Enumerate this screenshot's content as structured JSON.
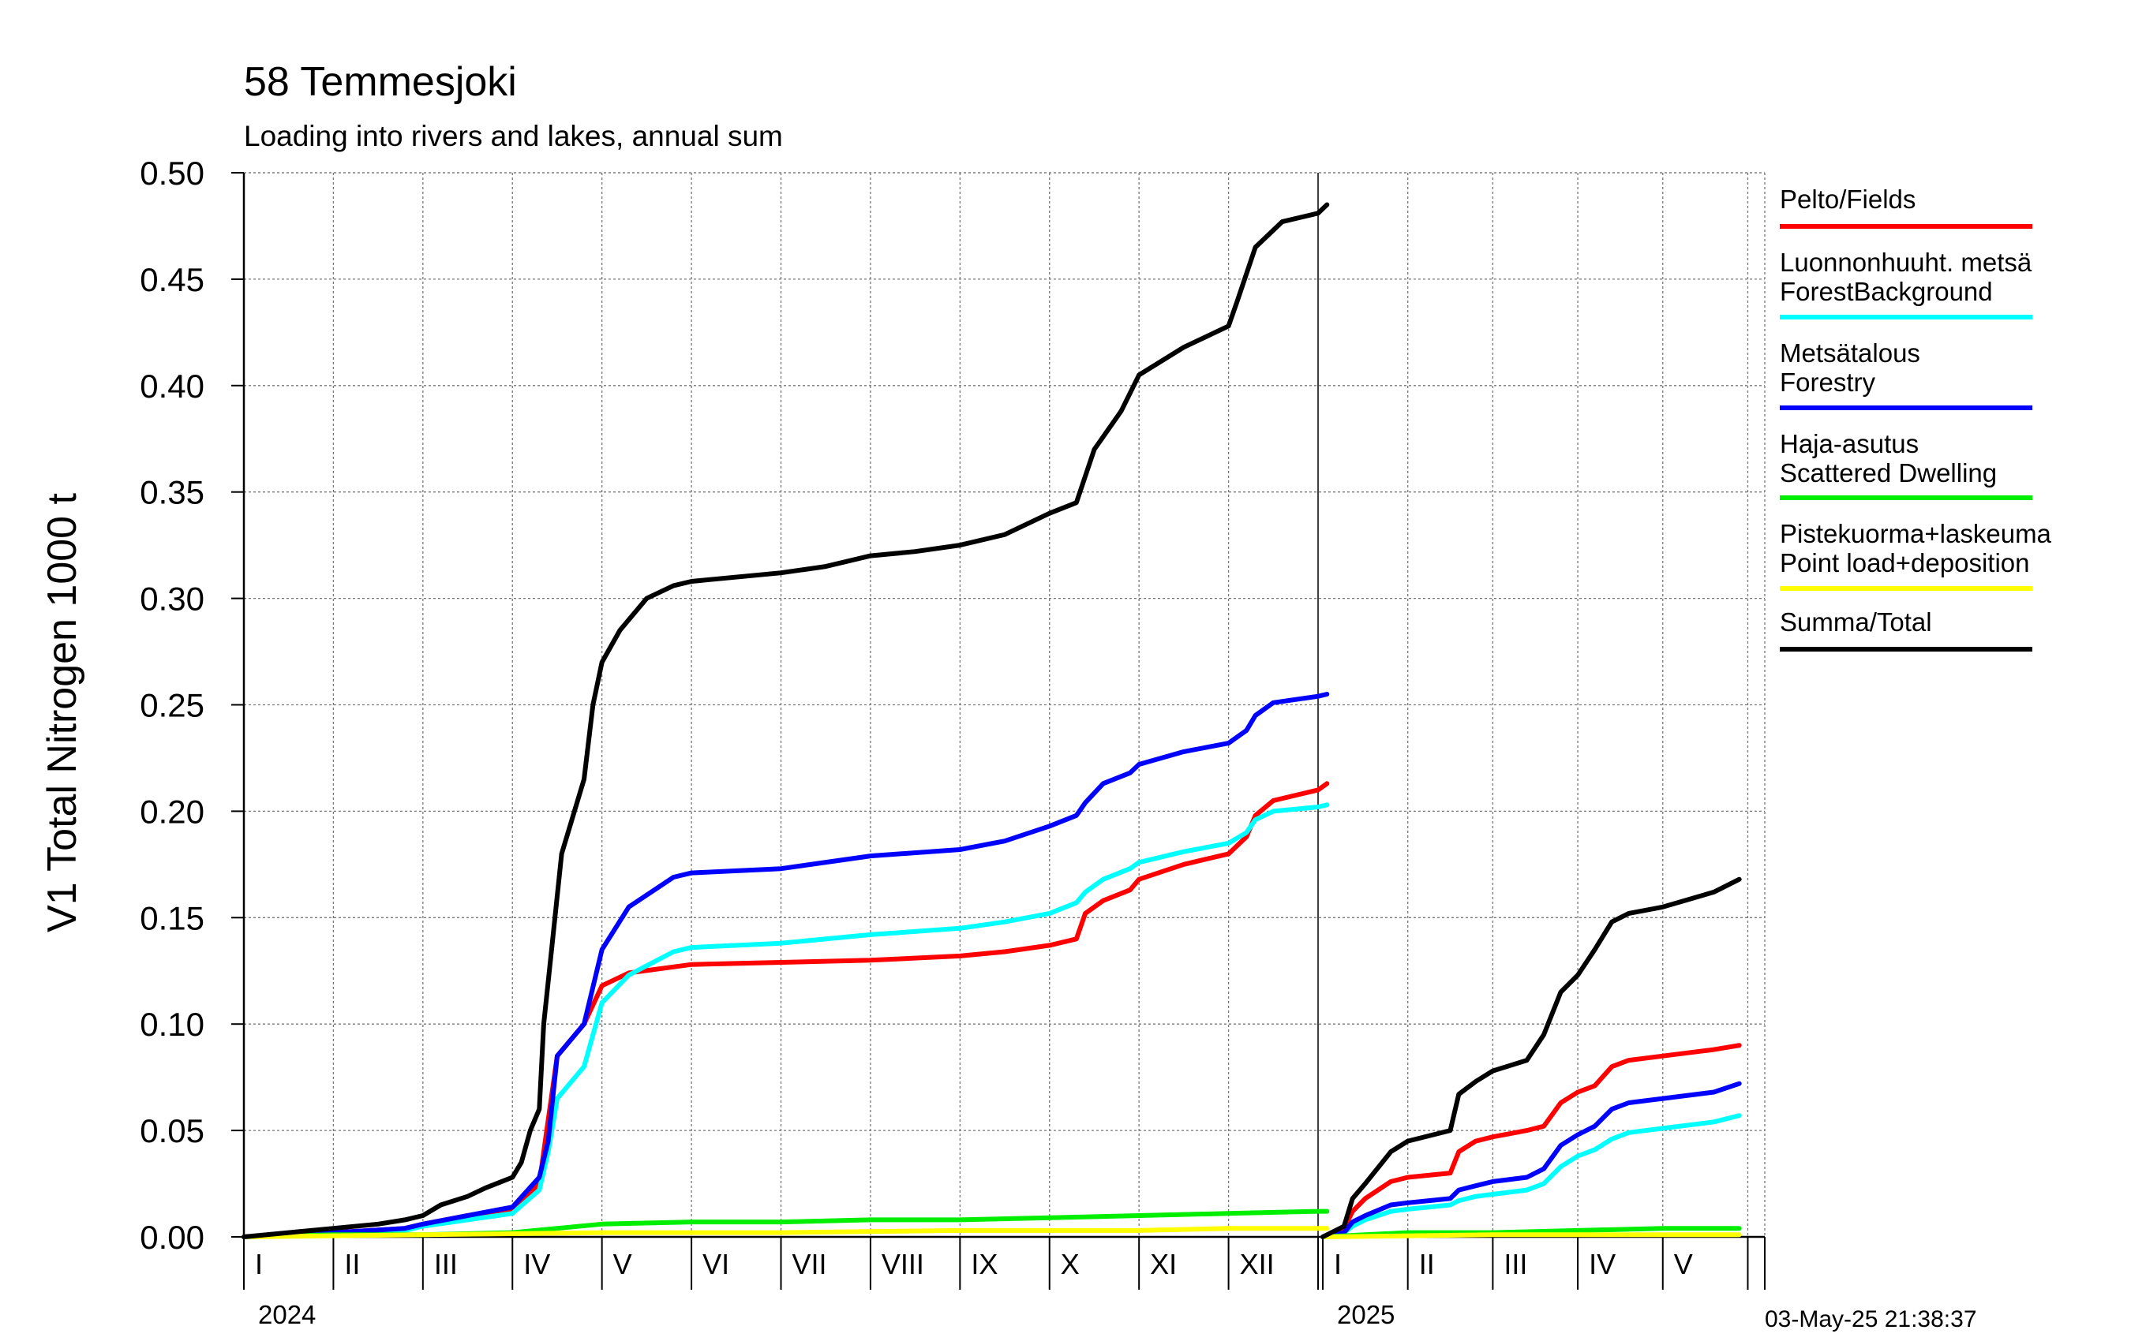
{
  "title": "58 Temmesjoki",
  "subtitle": "Loading into rivers and lakes, annual sum",
  "timestamp": "03-May-25 21:38:37",
  "chart_data": {
    "type": "line",
    "ylabel": "V1 Total Nitrogen 1000 t",
    "ylim": [
      0,
      0.5
    ],
    "y_ticks": [
      "0.00",
      "0.05",
      "0.10",
      "0.15",
      "0.20",
      "0.25",
      "0.30",
      "0.35",
      "0.40",
      "0.45",
      "0.50"
    ],
    "x_unit": "month",
    "panels": [
      {
        "year": "2024",
        "months": [
          "I",
          "II",
          "III",
          "IV",
          "V",
          "VI",
          "VII",
          "VIII",
          "IX",
          "X",
          "XI",
          "XII"
        ]
      },
      {
        "year": "2025",
        "months": [
          "I",
          "II",
          "III",
          "IV",
          "V"
        ]
      }
    ],
    "grid": true,
    "legend_position": "right",
    "series": [
      {
        "name": "Pelto/Fields",
        "color": "#ff0000",
        "panel_2024": [
          [
            0,
            0
          ],
          [
            1,
            0.002
          ],
          [
            1.8,
            0.004
          ],
          [
            2,
            0.006
          ],
          [
            2.5,
            0.01
          ],
          [
            3,
            0.013
          ],
          [
            3.3,
            0.025
          ],
          [
            3.4,
            0.055
          ],
          [
            3.5,
            0.085
          ],
          [
            3.8,
            0.1
          ],
          [
            4,
            0.118
          ],
          [
            4.3,
            0.124
          ],
          [
            5,
            0.128
          ],
          [
            6,
            0.129
          ],
          [
            7,
            0.13
          ],
          [
            8,
            0.132
          ],
          [
            8.5,
            0.134
          ],
          [
            9,
            0.137
          ],
          [
            9.3,
            0.14
          ],
          [
            9.4,
            0.152
          ],
          [
            9.6,
            0.158
          ],
          [
            9.9,
            0.163
          ],
          [
            10,
            0.168
          ],
          [
            10.5,
            0.175
          ],
          [
            11,
            0.18
          ],
          [
            11.2,
            0.188
          ],
          [
            11.3,
            0.198
          ],
          [
            11.5,
            0.205
          ],
          [
            12,
            0.21
          ],
          [
            12.1,
            0.213
          ]
        ],
        "panel_2025": [
          [
            0,
            0
          ],
          [
            0.25,
            0.004
          ],
          [
            0.35,
            0.012
          ],
          [
            0.5,
            0.018
          ],
          [
            0.8,
            0.026
          ],
          [
            1,
            0.028
          ],
          [
            1.5,
            0.03
          ],
          [
            1.6,
            0.04
          ],
          [
            1.8,
            0.045
          ],
          [
            2,
            0.047
          ],
          [
            2.4,
            0.05
          ],
          [
            2.6,
            0.052
          ],
          [
            2.8,
            0.063
          ],
          [
            3,
            0.068
          ],
          [
            3.2,
            0.071
          ],
          [
            3.4,
            0.08
          ],
          [
            3.6,
            0.083
          ],
          [
            4,
            0.085
          ],
          [
            4.6,
            0.088
          ],
          [
            4.9,
            0.09
          ]
        ]
      },
      {
        "name": "Luonnonhuuht. metsä ForestBackground",
        "color": "#00ffff",
        "panel_2024": [
          [
            0,
            0
          ],
          [
            1,
            0.002
          ],
          [
            1.8,
            0.003
          ],
          [
            2,
            0.005
          ],
          [
            2.5,
            0.008
          ],
          [
            3,
            0.011
          ],
          [
            3.3,
            0.022
          ],
          [
            3.4,
            0.04
          ],
          [
            3.5,
            0.065
          ],
          [
            3.8,
            0.08
          ],
          [
            4,
            0.11
          ],
          [
            4.3,
            0.123
          ],
          [
            4.8,
            0.134
          ],
          [
            5,
            0.136
          ],
          [
            6,
            0.138
          ],
          [
            7,
            0.142
          ],
          [
            8,
            0.145
          ],
          [
            8.5,
            0.148
          ],
          [
            9,
            0.152
          ],
          [
            9.3,
            0.157
          ],
          [
            9.4,
            0.162
          ],
          [
            9.6,
            0.168
          ],
          [
            9.9,
            0.173
          ],
          [
            10,
            0.176
          ],
          [
            10.5,
            0.181
          ],
          [
            11,
            0.185
          ],
          [
            11.2,
            0.19
          ],
          [
            11.3,
            0.196
          ],
          [
            11.5,
            0.2
          ],
          [
            12,
            0.202
          ],
          [
            12.1,
            0.203
          ]
        ],
        "panel_2025": [
          [
            0,
            0
          ],
          [
            0.25,
            0.002
          ],
          [
            0.35,
            0.005
          ],
          [
            0.5,
            0.008
          ],
          [
            0.8,
            0.012
          ],
          [
            1,
            0.013
          ],
          [
            1.5,
            0.015
          ],
          [
            1.6,
            0.017
          ],
          [
            1.8,
            0.019
          ],
          [
            2,
            0.02
          ],
          [
            2.4,
            0.022
          ],
          [
            2.6,
            0.025
          ],
          [
            2.8,
            0.033
          ],
          [
            3,
            0.038
          ],
          [
            3.2,
            0.041
          ],
          [
            3.4,
            0.046
          ],
          [
            3.6,
            0.049
          ],
          [
            4,
            0.051
          ],
          [
            4.6,
            0.054
          ],
          [
            4.9,
            0.057
          ]
        ]
      },
      {
        "name": "Metsätalous Forestry",
        "color": "#0000ff",
        "panel_2024": [
          [
            0,
            0
          ],
          [
            1,
            0.002
          ],
          [
            1.8,
            0.004
          ],
          [
            2,
            0.006
          ],
          [
            2.5,
            0.01
          ],
          [
            3,
            0.014
          ],
          [
            3.3,
            0.028
          ],
          [
            3.4,
            0.045
          ],
          [
            3.5,
            0.085
          ],
          [
            3.8,
            0.1
          ],
          [
            4,
            0.135
          ],
          [
            4.3,
            0.155
          ],
          [
            4.8,
            0.169
          ],
          [
            5,
            0.171
          ],
          [
            6,
            0.173
          ],
          [
            7,
            0.179
          ],
          [
            8,
            0.182
          ],
          [
            8.5,
            0.186
          ],
          [
            9,
            0.193
          ],
          [
            9.3,
            0.198
          ],
          [
            9.4,
            0.204
          ],
          [
            9.6,
            0.213
          ],
          [
            9.9,
            0.218
          ],
          [
            10,
            0.222
          ],
          [
            10.5,
            0.228
          ],
          [
            11,
            0.232
          ],
          [
            11.2,
            0.238
          ],
          [
            11.3,
            0.245
          ],
          [
            11.5,
            0.251
          ],
          [
            12,
            0.254
          ],
          [
            12.1,
            0.255
          ]
        ],
        "panel_2025": [
          [
            0,
            0
          ],
          [
            0.25,
            0.002
          ],
          [
            0.35,
            0.007
          ],
          [
            0.5,
            0.01
          ],
          [
            0.8,
            0.015
          ],
          [
            1,
            0.016
          ],
          [
            1.5,
            0.018
          ],
          [
            1.6,
            0.022
          ],
          [
            1.8,
            0.024
          ],
          [
            2,
            0.026
          ],
          [
            2.4,
            0.028
          ],
          [
            2.6,
            0.032
          ],
          [
            2.8,
            0.043
          ],
          [
            3,
            0.048
          ],
          [
            3.2,
            0.052
          ],
          [
            3.4,
            0.06
          ],
          [
            3.6,
            0.063
          ],
          [
            4,
            0.065
          ],
          [
            4.6,
            0.068
          ],
          [
            4.9,
            0.072
          ]
        ]
      },
      {
        "name": "Haja-asutus Scattered Dwelling",
        "color": "#00ee00",
        "panel_2024": [
          [
            0,
            0
          ],
          [
            1,
            0.001
          ],
          [
            2,
            0.001
          ],
          [
            3,
            0.002
          ],
          [
            3.5,
            0.004
          ],
          [
            4,
            0.006
          ],
          [
            5,
            0.007
          ],
          [
            6,
            0.007
          ],
          [
            7,
            0.008
          ],
          [
            8,
            0.008
          ],
          [
            9,
            0.009
          ],
          [
            10,
            0.01
          ],
          [
            11,
            0.011
          ],
          [
            12,
            0.012
          ],
          [
            12.1,
            0.012
          ]
        ],
        "panel_2025": [
          [
            0,
            0
          ],
          [
            0.5,
            0.001
          ],
          [
            1,
            0.002
          ],
          [
            2,
            0.002
          ],
          [
            3,
            0.003
          ],
          [
            4,
            0.004
          ],
          [
            4.9,
            0.004
          ]
        ]
      },
      {
        "name": "Pistekuorma+laskeuma Point load+deposition",
        "color": "#ffff00",
        "panel_2024": [
          [
            0,
            0
          ],
          [
            2,
            0.001
          ],
          [
            4,
            0.002
          ],
          [
            6,
            0.002
          ],
          [
            8,
            0.003
          ],
          [
            10,
            0.003
          ],
          [
            11,
            0.004
          ],
          [
            12.1,
            0.004
          ]
        ],
        "panel_2025": [
          [
            0,
            0
          ],
          [
            2,
            0.001
          ],
          [
            4.9,
            0.001
          ]
        ]
      },
      {
        "name": "Summa/Total",
        "color": "#000000",
        "panel_2024": [
          [
            0,
            0
          ],
          [
            0.5,
            0.002
          ],
          [
            1,
            0.004
          ],
          [
            1.5,
            0.006
          ],
          [
            1.8,
            0.008
          ],
          [
            2,
            0.01
          ],
          [
            2.2,
            0.015
          ],
          [
            2.5,
            0.019
          ],
          [
            2.7,
            0.023
          ],
          [
            3,
            0.028
          ],
          [
            3.1,
            0.035
          ],
          [
            3.2,
            0.05
          ],
          [
            3.3,
            0.06
          ],
          [
            3.35,
            0.1
          ],
          [
            3.45,
            0.14
          ],
          [
            3.55,
            0.18
          ],
          [
            3.8,
            0.215
          ],
          [
            3.9,
            0.25
          ],
          [
            4,
            0.27
          ],
          [
            4.2,
            0.285
          ],
          [
            4.5,
            0.3
          ],
          [
            4.8,
            0.306
          ],
          [
            5,
            0.308
          ],
          [
            6,
            0.312
          ],
          [
            6.5,
            0.315
          ],
          [
            7,
            0.32
          ],
          [
            7.5,
            0.322
          ],
          [
            8,
            0.325
          ],
          [
            8.5,
            0.33
          ],
          [
            9,
            0.34
          ],
          [
            9.3,
            0.345
          ],
          [
            9.5,
            0.37
          ],
          [
            9.8,
            0.388
          ],
          [
            10,
            0.405
          ],
          [
            10.5,
            0.418
          ],
          [
            11,
            0.428
          ],
          [
            11.1,
            0.44
          ],
          [
            11.3,
            0.465
          ],
          [
            11.6,
            0.477
          ],
          [
            12,
            0.481
          ],
          [
            12.1,
            0.485
          ]
        ],
        "panel_2025": [
          [
            0,
            0
          ],
          [
            0.25,
            0.005
          ],
          [
            0.35,
            0.018
          ],
          [
            0.5,
            0.025
          ],
          [
            0.8,
            0.04
          ],
          [
            1,
            0.045
          ],
          [
            1.5,
            0.05
          ],
          [
            1.6,
            0.067
          ],
          [
            1.8,
            0.073
          ],
          [
            2,
            0.078
          ],
          [
            2.4,
            0.083
          ],
          [
            2.6,
            0.095
          ],
          [
            2.8,
            0.115
          ],
          [
            3,
            0.123
          ],
          [
            3.2,
            0.135
          ],
          [
            3.4,
            0.148
          ],
          [
            3.6,
            0.152
          ],
          [
            4,
            0.155
          ],
          [
            4.6,
            0.162
          ],
          [
            4.9,
            0.168
          ]
        ]
      }
    ]
  }
}
